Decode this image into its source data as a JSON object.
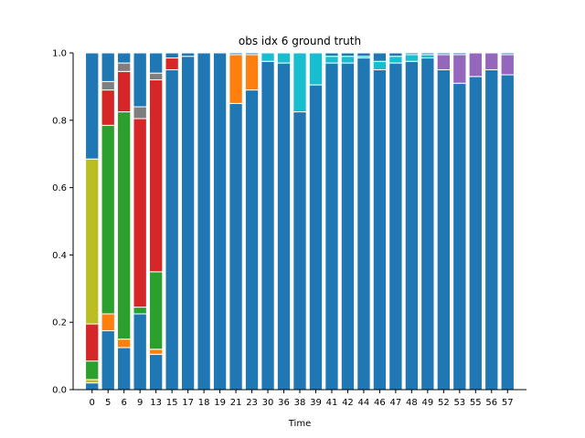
{
  "chart_data": {
    "type": "bar",
    "stacked": true,
    "title": "obs idx 6 ground truth",
    "xlabel": "Time",
    "ylabel": "",
    "ylim": [
      0,
      1.0
    ],
    "yticks": [
      "0.0",
      "0.2",
      "0.4",
      "0.6",
      "0.8",
      "1.0"
    ],
    "grid": false,
    "legend": "none",
    "categories": [
      "0",
      "5",
      "6",
      "9",
      "13",
      "15",
      "17",
      "18",
      "19",
      "21",
      "23",
      "30",
      "36",
      "38",
      "39",
      "41",
      "42",
      "44",
      "46",
      "47",
      "48",
      "49",
      "52",
      "53",
      "55",
      "56",
      "57"
    ],
    "series": [
      {
        "color": "#1f77b4",
        "values": [
          0.02,
          0.175,
          0.125,
          0.225,
          0.105,
          0.95,
          0.99,
          1.0,
          1.0,
          0.85,
          0.89,
          0.975,
          0.97,
          0.825,
          0.905,
          0.97,
          0.97,
          0.985,
          0.95,
          0.97,
          0.975,
          0.985,
          0.95,
          0.91,
          0.93,
          0.95,
          0.935
        ]
      },
      {
        "color": "#bcbd22",
        "values": [
          0.01,
          0,
          0,
          0,
          0,
          0,
          0,
          0,
          0,
          0,
          0,
          0,
          0,
          0,
          0,
          0,
          0,
          0,
          0,
          0,
          0,
          0,
          0,
          0,
          0,
          0,
          0
        ]
      },
      {
        "color": "#2ca02c",
        "values": [
          0.055,
          0,
          0,
          0,
          0,
          0,
          0,
          0,
          0,
          0,
          0,
          0,
          0,
          0,
          0,
          0,
          0,
          0,
          0,
          0,
          0,
          0,
          0,
          0,
          0,
          0,
          0
        ]
      },
      {
        "color": "#d62728",
        "values": [
          0.11,
          0,
          0,
          0,
          0,
          0,
          0,
          0,
          0,
          0,
          0,
          0,
          0,
          0,
          0,
          0,
          0,
          0,
          0,
          0,
          0,
          0,
          0,
          0,
          0,
          0,
          0
        ]
      },
      {
        "color": "#bcbd22",
        "values": [
          0.49,
          0,
          0,
          0,
          0,
          0,
          0,
          0,
          0,
          0,
          0,
          0,
          0,
          0,
          0,
          0,
          0,
          0,
          0,
          0,
          0,
          0,
          0,
          0,
          0,
          0,
          0
        ]
      },
      {
        "color": "#ff7f0e",
        "values": [
          0,
          0.05,
          0.025,
          0,
          0.015,
          0,
          0,
          0,
          0,
          0.145,
          0.105,
          0,
          0,
          0,
          0,
          0,
          0,
          0,
          0,
          0,
          0,
          0,
          0,
          0,
          0,
          0,
          0
        ]
      },
      {
        "color": "#2ca02c",
        "values": [
          0,
          0.56,
          0.675,
          0.02,
          0.23,
          0,
          0,
          0,
          0,
          0,
          0,
          0,
          0,
          0,
          0,
          0,
          0,
          0,
          0,
          0,
          0,
          0,
          0,
          0,
          0,
          0,
          0
        ]
      },
      {
        "color": "#d62728",
        "values": [
          0,
          0.105,
          0.12,
          0.56,
          0.57,
          0.035,
          0,
          0,
          0,
          0,
          0,
          0,
          0,
          0,
          0,
          0,
          0,
          0,
          0,
          0,
          0,
          0,
          0,
          0,
          0,
          0,
          0
        ]
      },
      {
        "color": "#7f7f7f",
        "values": [
          0,
          0.025,
          0.025,
          0.035,
          0.02,
          0,
          0,
          0,
          0,
          0,
          0,
          0,
          0,
          0,
          0,
          0,
          0,
          0,
          0,
          0,
          0,
          0,
          0,
          0,
          0,
          0,
          0
        ]
      },
      {
        "color": "#17becf",
        "values": [
          0,
          0,
          0,
          0,
          0,
          0,
          0,
          0,
          0,
          0,
          0,
          0.025,
          0.03,
          0.175,
          0.095,
          0.02,
          0.02,
          0.005,
          0.025,
          0.02,
          0.02,
          0.01,
          0,
          0,
          0,
          0,
          0
        ]
      },
      {
        "color": "#9467bd",
        "values": [
          0,
          0,
          0,
          0,
          0,
          0,
          0,
          0,
          0,
          0,
          0,
          0,
          0,
          0,
          0,
          0,
          0,
          0,
          0,
          0,
          0,
          0,
          0.045,
          0.085,
          0.07,
          0.05,
          0.06
        ]
      },
      {
        "color": "#1f77b4",
        "values": [
          0.315,
          0.085,
          0.03,
          0.16,
          0.06,
          0.015,
          0.01,
          0,
          0,
          0.005,
          0.005,
          0,
          0,
          0,
          0,
          0.01,
          0.01,
          0.01,
          0.025,
          0.01,
          0.005,
          0.005,
          0.005,
          0.005,
          0,
          0,
          0.005
        ]
      }
    ]
  }
}
